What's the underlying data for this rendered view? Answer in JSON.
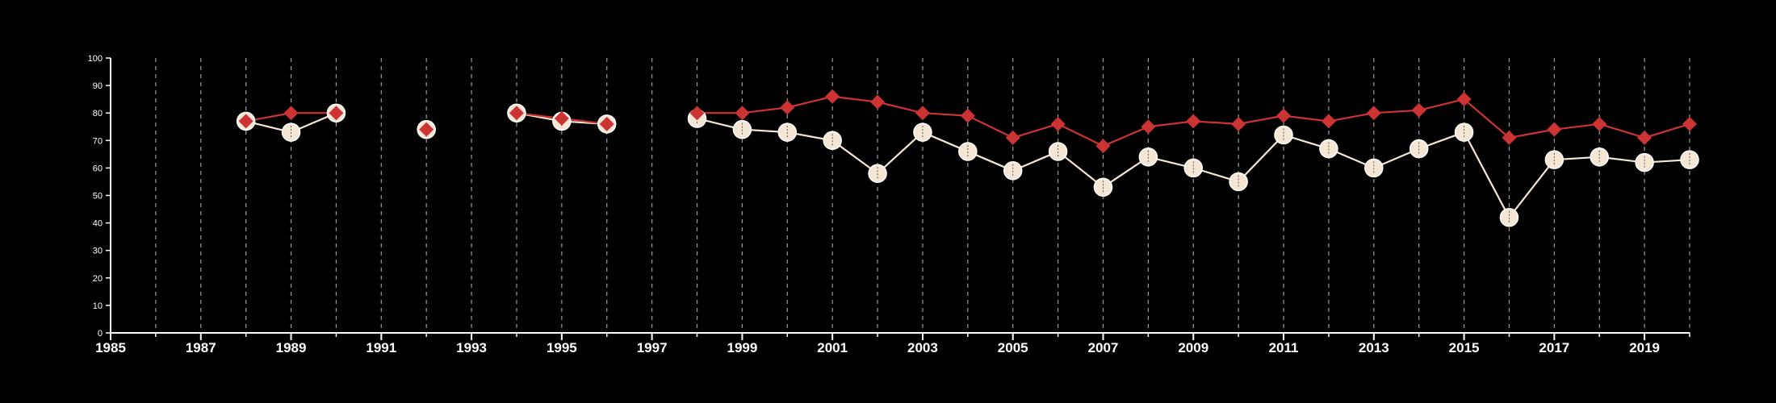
{
  "chart_data": {
    "type": "line",
    "title": "",
    "xlabel": "",
    "ylabel": "",
    "xlim": [
      1985,
      2020
    ],
    "ylim": [
      0,
      100
    ],
    "x_ticks": [
      "1985",
      "1987",
      "1989",
      "1991",
      "1993",
      "1995",
      "1997",
      "1999",
      "2001",
      "2003",
      "2005",
      "2007",
      "2009",
      "2011",
      "2013",
      "2015",
      "2017",
      "2019"
    ],
    "y_ticks": [
      "0",
      "10",
      "20",
      "30",
      "40",
      "50",
      "60",
      "70",
      "80",
      "90",
      "100"
    ],
    "vertical_grid": "dashed, every year",
    "horizontal_grid": false,
    "background": "#000000",
    "series": [
      {
        "color": "#cc3333",
        "marker": "diamond",
        "points": [
          [
            1988,
            77
          ],
          [
            1989,
            80
          ],
          [
            1990,
            80
          ],
          [
            1992,
            74
          ],
          [
            1994,
            80
          ],
          [
            1995,
            78
          ],
          [
            1996,
            76
          ],
          [
            1998,
            80
          ],
          [
            1999,
            80
          ],
          [
            2000,
            82
          ],
          [
            2001,
            86
          ],
          [
            2002,
            84
          ],
          [
            2003,
            80
          ],
          [
            2004,
            79
          ],
          [
            2005,
            71
          ],
          [
            2006,
            76
          ],
          [
            2007,
            68
          ],
          [
            2008,
            75
          ],
          [
            2009,
            77
          ],
          [
            2010,
            76
          ],
          [
            2011,
            79
          ],
          [
            2012,
            77
          ],
          [
            2013,
            80
          ],
          [
            2014,
            81
          ],
          [
            2015,
            85
          ],
          [
            2016,
            71
          ],
          [
            2017,
            74
          ],
          [
            2018,
            76
          ],
          [
            2019,
            71
          ],
          [
            2020,
            76
          ]
        ]
      },
      {
        "color": "#f5e6d3",
        "marker": "circle",
        "points": [
          [
            1988,
            77
          ],
          [
            1989,
            73
          ],
          [
            1990,
            80
          ],
          [
            1992,
            74
          ],
          [
            1994,
            80
          ],
          [
            1995,
            77
          ],
          [
            1996,
            76
          ],
          [
            1998,
            78
          ],
          [
            1999,
            74
          ],
          [
            2000,
            73
          ],
          [
            2001,
            70
          ],
          [
            2002,
            58
          ],
          [
            2003,
            73
          ],
          [
            2004,
            66
          ],
          [
            2005,
            59
          ],
          [
            2006,
            66
          ],
          [
            2007,
            53
          ],
          [
            2008,
            64
          ],
          [
            2009,
            60
          ],
          [
            2010,
            55
          ],
          [
            2011,
            72
          ],
          [
            2012,
            67
          ],
          [
            2013,
            60
          ],
          [
            2014,
            67
          ],
          [
            2015,
            73
          ],
          [
            2016,
            42
          ],
          [
            2017,
            63
          ],
          [
            2018,
            64
          ],
          [
            2019,
            62
          ],
          [
            2020,
            63
          ]
        ]
      }
    ]
  }
}
